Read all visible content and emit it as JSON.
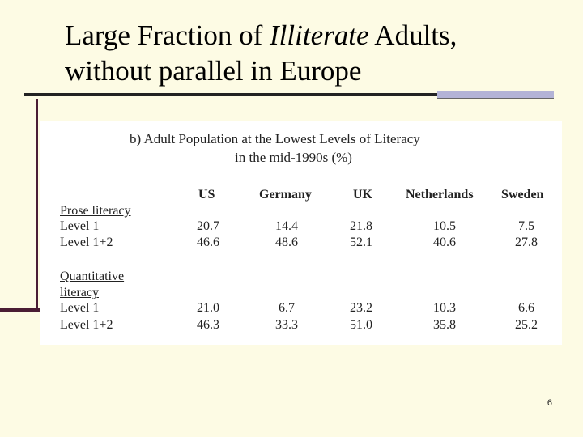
{
  "slide": {
    "title_line1_a": "Large Fraction of ",
    "title_line1_italic": "Illiterate",
    "title_line1_b": " Adults,",
    "title_line2": "without parallel in Europe",
    "page_number": "6"
  },
  "table": {
    "caption_line1": "b) Adult Population at the Lowest Levels of Literacy",
    "caption_line2": "in the mid-1990s (%)",
    "columns": [
      "US",
      "Germany",
      "UK",
      "Netherlands",
      "Sweden"
    ],
    "groups": [
      {
        "heading_lines": [
          "Prose literacy"
        ],
        "rows": [
          {
            "label": "Level 1",
            "values": [
              "20.7",
              "14.4",
              "21.8",
              "10.5",
              "7.5"
            ]
          },
          {
            "label": "Level 1+2",
            "values": [
              "46.6",
              "48.6",
              "52.1",
              "40.6",
              "27.8"
            ]
          }
        ]
      },
      {
        "heading_lines": [
          "Quantitative",
          "literacy"
        ],
        "rows": [
          {
            "label": "Level 1",
            "values": [
              "21.0",
              "6.7",
              "23.2",
              "10.3",
              "6.6"
            ]
          },
          {
            "label": "Level 1+2",
            "values": [
              "46.3",
              "33.3",
              "51.0",
              "35.8",
              "25.2"
            ]
          }
        ]
      }
    ]
  }
}
